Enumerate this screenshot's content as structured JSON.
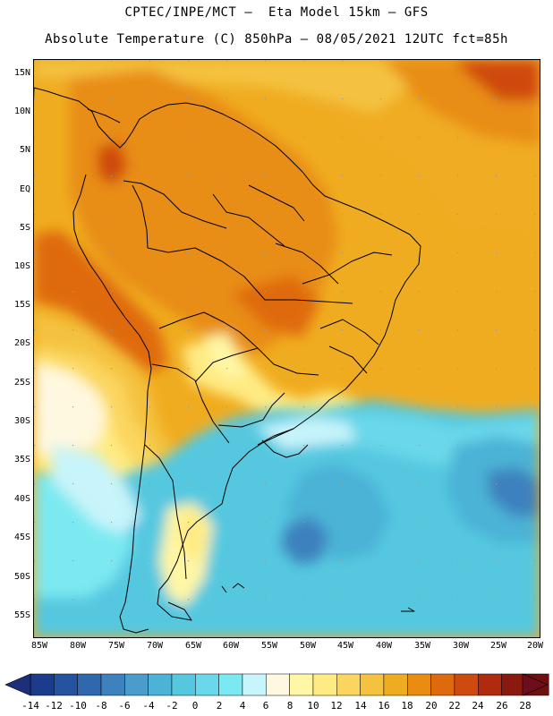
{
  "header": {
    "line1": "CPTEC/INPE/MCT –  Eta Model 15km – GFS",
    "line2": "Absolute Temperature (C) 850hPa – 08/05/2021 12UTC fct=85h"
  },
  "map": {
    "lat_labels": [
      "15N",
      "10N",
      "5N",
      "EQ",
      "5S",
      "10S",
      "15S",
      "20S",
      "25S",
      "30S",
      "35S",
      "40S",
      "45S",
      "50S",
      "55S"
    ],
    "lon_labels": [
      "85W",
      "80W",
      "75W",
      "70W",
      "65W",
      "60W",
      "55W",
      "50W",
      "45W",
      "40W",
      "35W",
      "30W",
      "25W",
      "20W"
    ]
  },
  "colorbar": {
    "labels": [
      "-14",
      "-12",
      "-10",
      "-8",
      "-6",
      "-4",
      "-2",
      "0",
      "2",
      "4",
      "6",
      "8",
      "10",
      "12",
      "14",
      "16",
      "18",
      "20",
      "22",
      "24",
      "26",
      "28"
    ],
    "colors": [
      "#1b3c8c",
      "#2553a0",
      "#3068ae",
      "#3d82be",
      "#4a9ccb",
      "#4cb3d6",
      "#55c8e0",
      "#6ad8ea",
      "#7be9f1",
      "#c8f4fb",
      "#fff8e0",
      "#fff6a6",
      "#ffeb83",
      "#fbd65e",
      "#f4c23f",
      "#f0ac20",
      "#e88d12",
      "#df6a0e",
      "#cf4a0e",
      "#b02a10",
      "#8a1a10",
      "#6e1010"
    ],
    "low_color": "#1d2f7a",
    "high_color": "#6e0e1c"
  }
}
